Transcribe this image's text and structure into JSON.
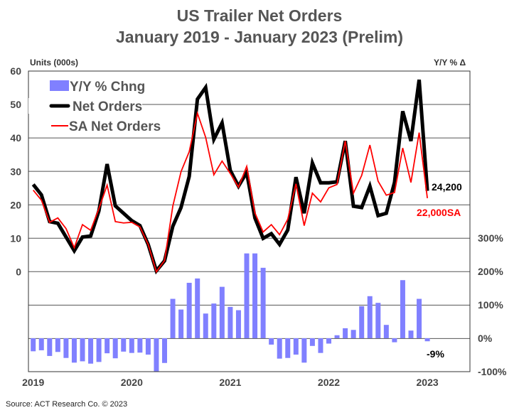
{
  "chart_data": {
    "type": "bar+line",
    "title": [
      "US Trailer Net Orders",
      "January 2019 - January 2023 (Prelim)"
    ],
    "ylabel_left": "Units (000s)",
    "ylabel_right": "Y/Y % Δ",
    "ylim_left": [
      0,
      60
    ],
    "yticks_left": [
      "0",
      "10",
      "20",
      "30",
      "40",
      "50",
      "60"
    ],
    "ylim_right": [
      -100,
      300
    ],
    "yticks_right": [
      "-100%",
      "0%",
      "100%",
      "200%",
      "300%"
    ],
    "xticks": [
      "2019",
      "2020",
      "2021",
      "2022",
      "2023"
    ],
    "x_range": [
      "Jan 2019",
      "Jan 2023"
    ],
    "grid": true,
    "legend_position": "top-left",
    "series": [
      {
        "name": "Y/Y % Chng",
        "type": "bar",
        "axis": "right",
        "color": "#8080ff",
        "values": [
          -39,
          -36,
          -53,
          -41,
          -59,
          -73,
          -69,
          -76,
          -71,
          -45,
          -60,
          -40,
          -44,
          -43,
          -49,
          -101,
          -74,
          118,
          86,
          166,
          179,
          74,
          104,
          154,
          94,
          84,
          254,
          254,
          211,
          -19,
          -61,
          -59,
          -49,
          -73,
          -23,
          -44,
          -16,
          9,
          30,
          25,
          96,
          126,
          106,
          40,
          -12,
          174,
          23,
          118,
          -9
        ]
      },
      {
        "name": "Net Orders",
        "type": "line",
        "axis": "left",
        "color": "#000000",
        "values": [
          26.1,
          23.0,
          15.0,
          14.5,
          10.4,
          6.3,
          10.4,
          10.7,
          18.2,
          32.2,
          19.7,
          17.5,
          15.3,
          13.8,
          8.2,
          0.3,
          3.3,
          13.6,
          19.2,
          28.5,
          51.6,
          55.1,
          39.6,
          44.5,
          30.3,
          25.6,
          29.7,
          16.1,
          10.0,
          11.4,
          8.2,
          12.5,
          28.3,
          17.5,
          32.5,
          26.6,
          26.6,
          26.9,
          39.1,
          19.6,
          19.2,
          25.6,
          16.8,
          17.5,
          26.7,
          48.0,
          39.1,
          57.4,
          24.2
        ]
      },
      {
        "name": "SA Net Orders",
        "type": "line",
        "axis": "left",
        "color": "#ff0000",
        "values": [
          24.4,
          21.4,
          14.8,
          16.1,
          12.9,
          7.2,
          14.1,
          12.4,
          18.9,
          25.9,
          15.0,
          14.6,
          14.8,
          13.4,
          8.2,
          0.0,
          3.4,
          19.6,
          29.9,
          35.9,
          47.4,
          40.2,
          29.0,
          33.1,
          29.4,
          25.3,
          31.5,
          17.6,
          11.9,
          14.1,
          11.1,
          15.7,
          26.3,
          13.8,
          23.5,
          20.9,
          25.1,
          26.1,
          39.1,
          23.5,
          28.8,
          37.9,
          27.1,
          22.9,
          23.7,
          37.0,
          26.7,
          41.6,
          22.0
        ]
      }
    ],
    "annotations": {
      "net_orders_last": "24,200",
      "sa_last": "22,000SA",
      "yy_last": "-9%"
    }
  },
  "source": "Source: ACT Research Co. © 2023"
}
